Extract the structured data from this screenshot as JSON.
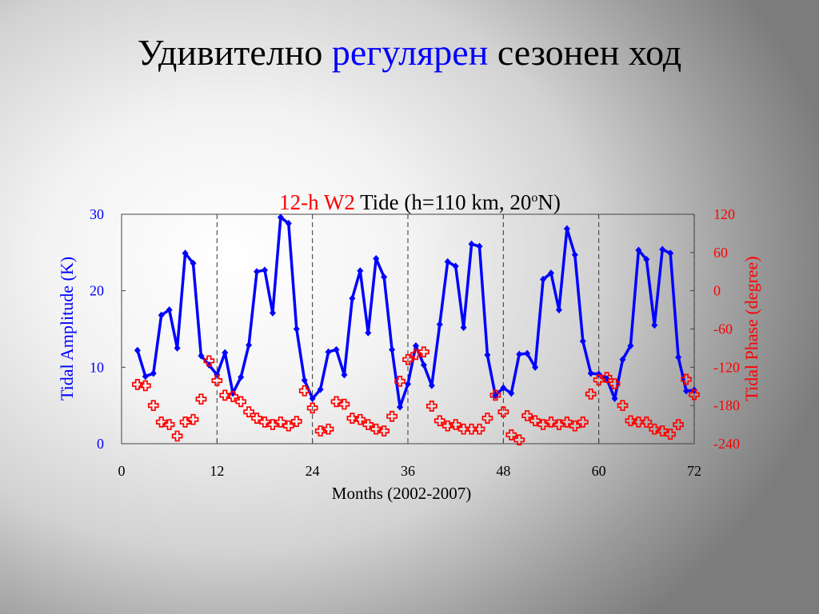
{
  "slide": {
    "title_part1": "Удивително",
    "title_part2": "регулярен",
    "title_part3": "сезонен ход"
  },
  "colors": {
    "amplitude": "#0000ff",
    "phase": "#ff0000",
    "title_highlight": "#0000ff"
  },
  "chart_data": {
    "type": "line",
    "title_part1": "12-h W2",
    "title_part2": " Tide (h=110 km, 20",
    "title_sup": "o",
    "title_part3": "N)",
    "xlabel": "Months (2002-2007)",
    "ylabel_left": "Tidal Amplitude (K)",
    "ylabel_right": "Tidal Phase (degree)",
    "xlim": [
      0,
      72
    ],
    "ylim_left": [
      0,
      30
    ],
    "ylim_right": [
      -240,
      120
    ],
    "x_ticks": [
      "0",
      "12",
      "24",
      "36",
      "48",
      "60",
      "72"
    ],
    "y_left_ticks": [
      "0",
      "10",
      "20",
      "30"
    ],
    "y_right_ticks": [
      "-240",
      "-180",
      "-120",
      "-60",
      "0",
      "60",
      "120"
    ],
    "year_dividers": [
      12,
      24,
      36,
      48,
      60,
      72
    ],
    "grid": false,
    "series": [
      {
        "axis": "left",
        "style": "line+diamond",
        "x": [
          2,
          3,
          4,
          5,
          6,
          7,
          8,
          9,
          10,
          11,
          12,
          13,
          14,
          15,
          16,
          17,
          18,
          19,
          20,
          21,
          22,
          23,
          24,
          25,
          26,
          27,
          28,
          29,
          30,
          31,
          32,
          33,
          34,
          35,
          36,
          37,
          38,
          39,
          40,
          41,
          42,
          43,
          44,
          45,
          46,
          47,
          48,
          49,
          50,
          51,
          52,
          53,
          54,
          55,
          56,
          57,
          58,
          59,
          60,
          61,
          62,
          63,
          64,
          65,
          66,
          67,
          68,
          69,
          70,
          71,
          72
        ],
        "values": [
          12.2,
          8.8,
          9.2,
          16.8,
          17.5,
          12.5,
          24.9,
          23.6,
          11.5,
          10.3,
          9.0,
          11.9,
          6.6,
          8.7,
          12.9,
          22.5,
          22.7,
          17.1,
          29.6,
          28.8,
          15.0,
          8.3,
          5.9,
          7.1,
          12.0,
          12.3,
          9.0,
          19.0,
          22.6,
          14.5,
          24.2,
          21.8,
          12.3,
          4.8,
          7.8,
          12.8,
          10.3,
          7.6,
          15.6,
          23.8,
          23.2,
          15.2,
          26.1,
          25.8,
          11.6,
          6.3,
          7.3,
          6.6,
          11.7,
          11.8,
          10.0,
          21.5,
          22.3,
          17.5,
          28.1,
          24.7,
          13.4,
          9.2,
          9.1,
          8.5,
          5.9,
          11.0,
          12.8,
          25.3,
          24.1,
          15.5,
          25.4,
          24.9,
          11.3,
          6.9,
          7.0
        ]
      },
      {
        "axis": "right",
        "style": "marker-cross",
        "x": [
          2,
          3,
          4,
          5,
          6,
          7,
          8,
          9,
          10,
          11,
          12,
          13,
          14,
          15,
          16,
          17,
          18,
          19,
          20,
          21,
          22,
          23,
          24,
          25,
          26,
          27,
          28,
          29,
          30,
          31,
          32,
          33,
          34,
          35,
          36,
          37,
          38,
          39,
          40,
          41,
          42,
          43,
          44,
          45,
          46,
          47,
          48,
          49,
          50,
          51,
          52,
          53,
          54,
          55,
          56,
          57,
          58,
          59,
          60,
          61,
          62,
          63,
          64,
          65,
          66,
          67,
          68,
          69,
          70,
          71,
          72
        ],
        "values": [
          -147,
          -149,
          -180,
          -206,
          -210,
          -228,
          -206,
          -202,
          -170,
          -110,
          -141,
          -164,
          -166,
          -174,
          -190,
          -200,
          -206,
          -210,
          -206,
          -212,
          -205,
          -157,
          -184,
          -220,
          -217,
          -174,
          -178,
          -200,
          -202,
          -210,
          -217,
          -220,
          -197,
          -142,
          -108,
          -100,
          -96,
          -181,
          -204,
          -212,
          -210,
          -217,
          -217,
          -217,
          -200,
          -164,
          -190,
          -226,
          -234,
          -196,
          -204,
          -210,
          -206,
          -210,
          -206,
          -212,
          -206,
          -162,
          -140,
          -136,
          -146,
          -180,
          -204,
          -206,
          -206,
          -217,
          -220,
          -225,
          -210,
          -139,
          -163
        ]
      }
    ]
  }
}
